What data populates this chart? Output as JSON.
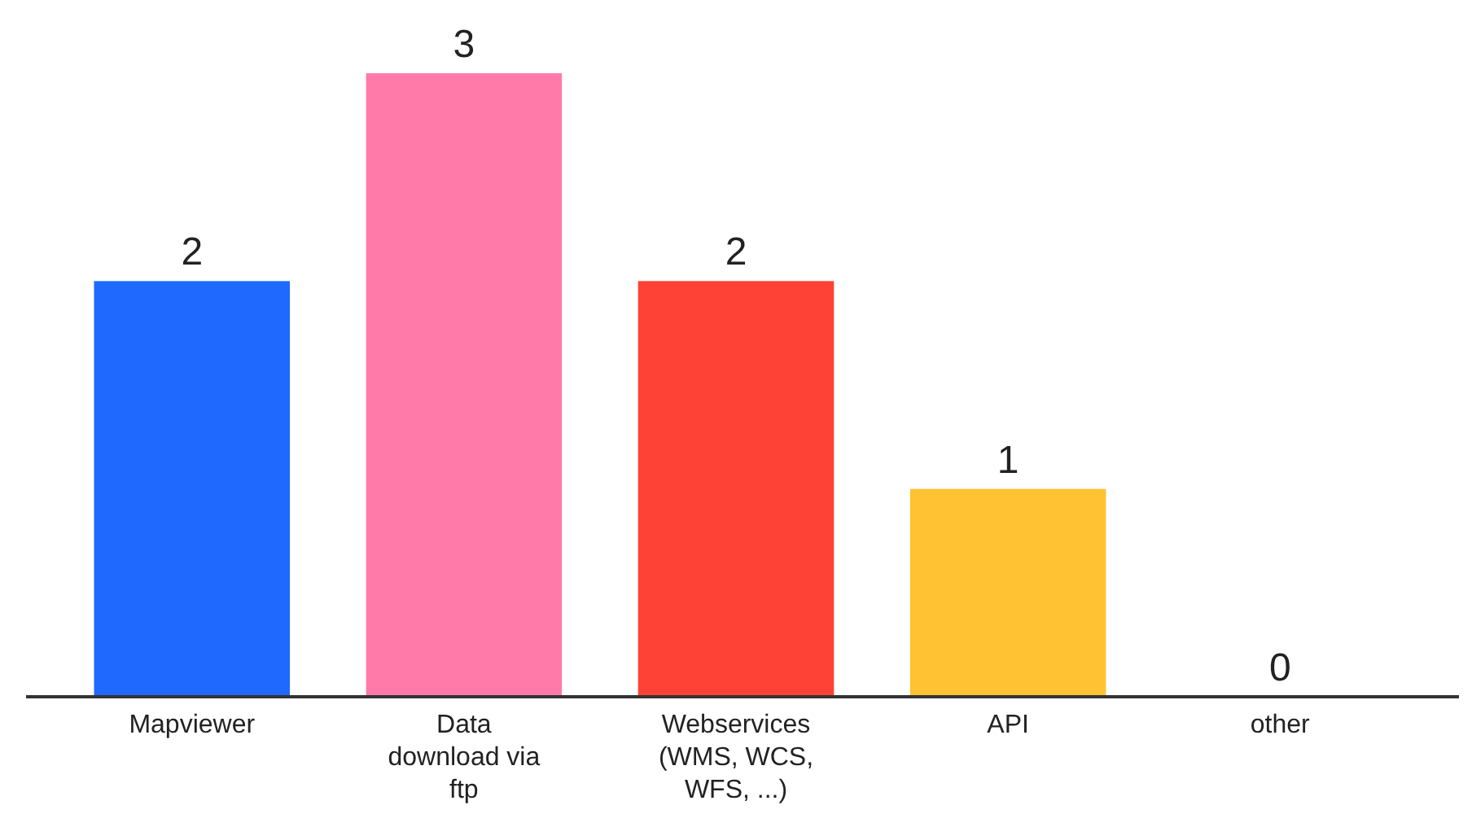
{
  "chart_data": {
    "type": "bar",
    "categories": [
      "Mapviewer",
      "Data download via ftp",
      "Webservices (WMS, WCS, WFS, ...)",
      "API",
      "other"
    ],
    "values": [
      2,
      3,
      2,
      1,
      0
    ],
    "colors": [
      "#1f69ff",
      "#ff7aa8",
      "#ff4136",
      "#ffc233",
      "#cccccc"
    ],
    "data_labels": true
  }
}
